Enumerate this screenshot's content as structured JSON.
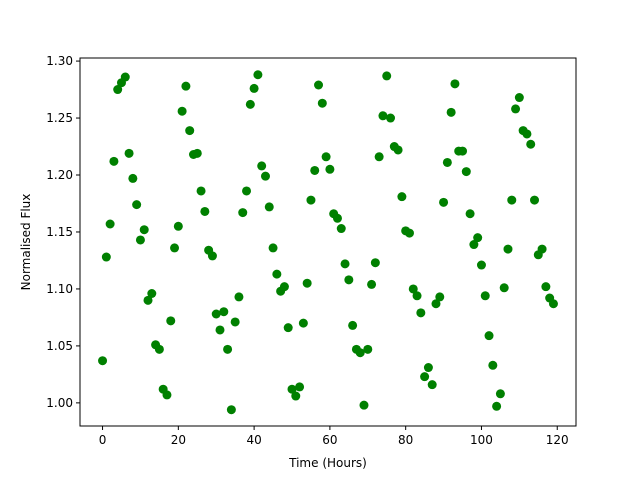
{
  "chart_data": {
    "type": "scatter",
    "x_label": "Time (Hours)",
    "y_label": "Normalised Flux",
    "color": "#008000",
    "x": [
      0,
      1,
      2,
      3,
      4,
      5,
      6,
      7,
      8,
      9,
      10,
      11,
      12,
      13,
      14,
      15,
      16,
      17,
      18,
      19,
      20,
      21,
      22,
      23,
      24,
      25,
      26,
      27,
      28,
      29,
      30,
      31,
      32,
      33,
      34,
      35,
      36,
      37,
      38,
      39,
      40,
      41,
      42,
      43,
      44,
      45,
      46,
      47,
      48,
      49,
      50,
      51,
      52,
      53,
      54,
      55,
      56,
      57,
      58,
      59,
      60,
      61,
      62,
      63,
      64,
      65,
      66,
      67,
      68,
      69,
      70,
      71,
      72,
      73,
      74,
      75,
      76,
      77,
      78,
      79,
      80,
      81,
      82,
      83,
      84,
      85,
      86,
      87,
      88,
      89,
      90,
      91,
      92,
      93,
      94,
      95,
      96,
      97,
      98,
      99,
      100,
      101,
      102,
      103,
      104,
      105,
      106,
      107,
      108,
      109,
      110,
      111,
      112,
      113,
      114,
      115,
      116,
      117,
      118,
      119
    ],
    "values": [
      1.037,
      1.128,
      1.157,
      1.212,
      1.275,
      1.281,
      1.286,
      1.219,
      1.197,
      1.174,
      1.143,
      1.152,
      1.09,
      1.096,
      1.051,
      1.047,
      1.012,
      1.007,
      1.072,
      1.136,
      1.155,
      1.256,
      1.278,
      1.239,
      1.218,
      1.219,
      1.186,
      1.168,
      1.134,
      1.129,
      1.078,
      1.064,
      1.08,
      1.047,
      0.994,
      1.071,
      1.093,
      1.167,
      1.186,
      1.262,
      1.276,
      1.288,
      1.208,
      1.199,
      1.172,
      1.136,
      1.113,
      1.098,
      1.102,
      1.066,
      1.012,
      1.006,
      1.014,
      1.07,
      1.105,
      1.178,
      1.204,
      1.279,
      1.263,
      1.216,
      1.205,
      1.166,
      1.162,
      1.153,
      1.122,
      1.108,
      1.068,
      1.047,
      1.044,
      0.998,
      1.047,
      1.104,
      1.123,
      1.216,
      1.252,
      1.287,
      1.25,
      1.225,
      1.222,
      1.181,
      1.151,
      1.149,
      1.1,
      1.094,
      1.079,
      1.023,
      1.031,
      1.016,
      1.087,
      1.093,
      1.176,
      1.211,
      1.255,
      1.28,
      1.221,
      1.221,
      1.203,
      1.166,
      1.139,
      1.145,
      1.121,
      1.094,
      1.059,
      1.033,
      0.997,
      1.008,
      1.101,
      1.135,
      1.178,
      1.258,
      1.268,
      1.239,
      1.236,
      1.227,
      1.178,
      1.13,
      1.135,
      1.102,
      1.092,
      1.087
    ],
    "xlim": [
      -5.95,
      124.95
    ],
    "ylim": [
      0.9797,
      1.3027
    ],
    "xticks": [
      0,
      20,
      40,
      60,
      80,
      100,
      120
    ],
    "yticks": [
      {
        "value": 1.0,
        "label": "1.00"
      },
      {
        "value": 1.05,
        "label": "1.05"
      },
      {
        "value": 1.1,
        "label": "1.10"
      },
      {
        "value": 1.15,
        "label": "1.15"
      },
      {
        "value": 1.2,
        "label": "1.20"
      },
      {
        "value": 1.25,
        "label": "1.25"
      },
      {
        "value": 1.3,
        "label": "1.30"
      }
    ]
  }
}
